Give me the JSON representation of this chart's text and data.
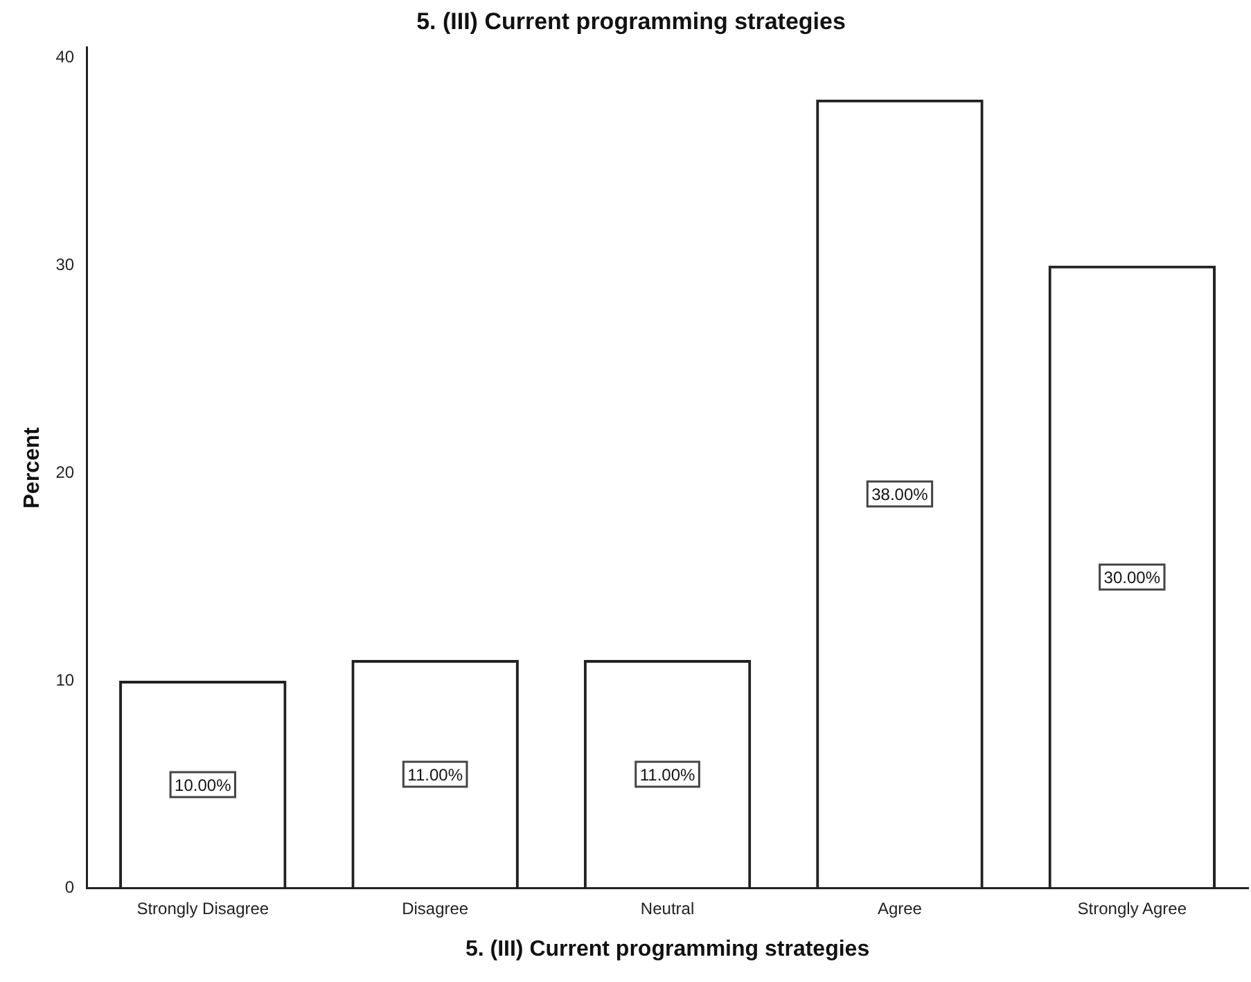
{
  "chart_data": {
    "type": "bar",
    "title": "5. (III) Current programming strategies",
    "xlabel": "5. (III) Current programming strategies",
    "ylabel": "Percent",
    "categories": [
      "Strongly Disagree",
      "Disagree",
      "Neutral",
      "Agree",
      "Strongly Agree"
    ],
    "values": [
      10,
      11,
      11,
      38,
      30
    ],
    "color": "#222222",
    "value_labels": [
      "10.00%",
      "11.00%",
      "11.00%",
      "38.00%",
      "30.00%"
    ],
    "ylim": [
      0,
      40.5
    ],
    "yticks": [
      0,
      10,
      20,
      30,
      40
    ],
    "grid": false,
    "legend": false
  }
}
